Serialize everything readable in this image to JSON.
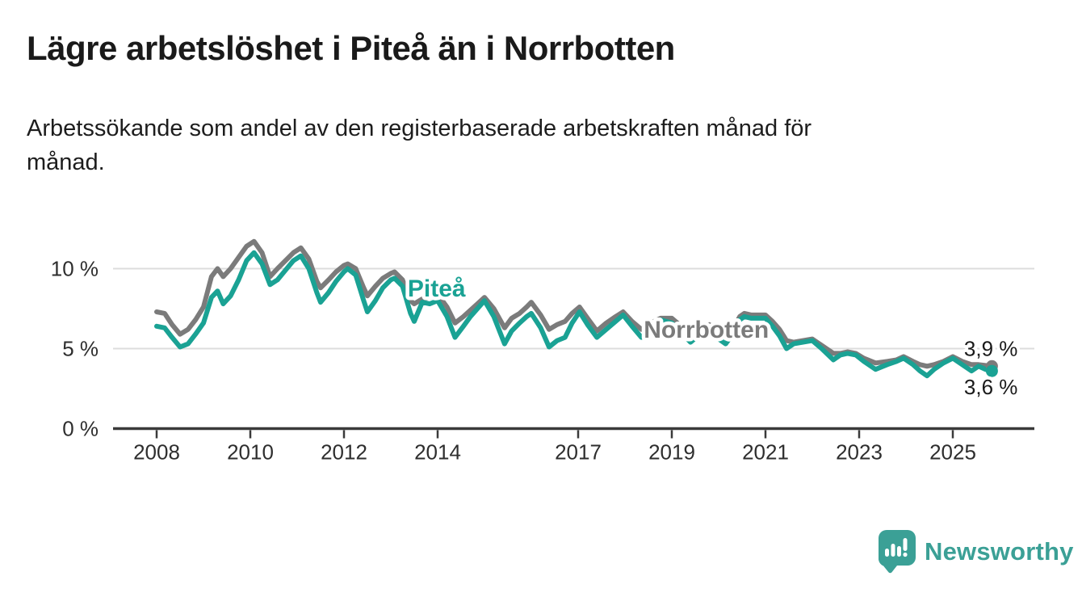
{
  "header": {
    "title": "Lägre arbetslöshet i Piteå än i Norrbotten",
    "subtitle_line1": "Arbetssökande som andel av den registerbaserade arbetskraften månad för",
    "subtitle_line2": "månad."
  },
  "footer": {
    "brand": "Newsworthy",
    "logo_icon": "newsworthy-speech-bubble-bar-chart-icon"
  },
  "colors": {
    "pitea": "#1aa294",
    "norrbotten": "#7b7b7b",
    "grid": "#dcdcdc",
    "axis": "#3a3a3a",
    "tick_text": "#2e2e2e",
    "value_text": "#1a1a1a",
    "brand": "#3ba096"
  },
  "chart_data": {
    "type": "line",
    "title": "Lägre arbetslöshet i Piteå än i Norrbotten",
    "subtitle": "Arbetssökande som andel av den registerbaserade arbetskraften månad för månad.",
    "unit": "%",
    "grid": "horizontal",
    "legend_position": "inline-labels",
    "x_ticks": [
      2008,
      2010,
      2012,
      2014,
      2017,
      2019,
      2021,
      2023,
      2025
    ],
    "x_tick_labels": [
      "2008",
      "2010",
      "2012",
      "2014",
      "2017",
      "2019",
      "2021",
      "2023",
      "2025"
    ],
    "y_ticks": [
      0,
      5,
      10
    ],
    "y_tick_labels": [
      "0 %",
      "5 %",
      "10 %"
    ],
    "ylim": [
      0,
      12.6
    ],
    "xlim": [
      2007.05,
      2026.75
    ],
    "x": [
      2008.0,
      2008.17,
      2008.33,
      2008.5,
      2008.67,
      2008.83,
      2009.0,
      2009.17,
      2009.3,
      2009.42,
      2009.58,
      2009.75,
      2009.92,
      2010.08,
      2010.25,
      2010.42,
      2010.58,
      2010.75,
      2010.92,
      2011.08,
      2011.25,
      2011.42,
      2011.5,
      2011.67,
      2011.83,
      2012.0,
      2012.08,
      2012.25,
      2012.42,
      2012.5,
      2012.67,
      2012.83,
      2013.0,
      2013.08,
      2013.25,
      2013.42,
      2013.5,
      2013.67,
      2013.83,
      2014.0,
      2014.2,
      2014.37,
      2014.55,
      2014.7,
      2014.85,
      2015.0,
      2015.2,
      2015.43,
      2015.58,
      2015.75,
      2015.9,
      2016.0,
      2016.2,
      2016.38,
      2016.55,
      2016.72,
      2016.87,
      2017.03,
      2017.2,
      2017.4,
      2017.6,
      2017.8,
      2017.96,
      2018.15,
      2018.35,
      2018.55,
      2018.76,
      2019.0,
      2019.2,
      2019.4,
      2019.6,
      2019.8,
      2020.0,
      2020.15,
      2020.3,
      2020.45,
      2020.55,
      2020.7,
      2020.85,
      2021.0,
      2021.15,
      2021.3,
      2021.45,
      2021.6,
      2021.8,
      2022.0,
      2022.2,
      2022.45,
      2022.6,
      2022.75,
      2022.93,
      2023.1,
      2023.35,
      2023.6,
      2023.8,
      2023.95,
      2024.15,
      2024.3,
      2024.45,
      2024.6,
      2024.8,
      2025.0,
      2025.2,
      2025.4,
      2025.55,
      2025.7,
      2025.8
    ],
    "series": [
      {
        "name": "Norrbotten",
        "color": "#7b7b7b",
        "label_x": 2018.4,
        "label_y": 5.68,
        "end_label": "3,9 %",
        "end_value": 3.9,
        "values": [
          7.3,
          7.2,
          6.5,
          5.9,
          6.2,
          6.8,
          7.6,
          9.5,
          10.0,
          9.5,
          10.0,
          10.7,
          11.4,
          11.7,
          11.0,
          9.5,
          10.0,
          10.5,
          11.0,
          11.3,
          10.6,
          9.2,
          8.8,
          9.3,
          9.8,
          10.2,
          10.3,
          10.0,
          8.8,
          8.3,
          8.9,
          9.4,
          9.7,
          9.8,
          9.3,
          8.0,
          7.8,
          8.1,
          8.2,
          8.4,
          7.6,
          6.6,
          7.0,
          7.4,
          7.8,
          8.2,
          7.5,
          6.3,
          6.9,
          7.2,
          7.6,
          7.9,
          7.1,
          6.2,
          6.5,
          6.7,
          7.2,
          7.6,
          6.9,
          6.1,
          6.6,
          7.0,
          7.3,
          6.7,
          6.2,
          6.6,
          6.9,
          6.9,
          6.4,
          5.9,
          6.2,
          6.5,
          6.0,
          5.7,
          6.2,
          7.0,
          7.2,
          7.1,
          7.1,
          7.1,
          6.7,
          6.2,
          5.5,
          5.4,
          5.5,
          5.6,
          5.2,
          4.7,
          4.7,
          4.8,
          4.7,
          4.4,
          4.1,
          4.2,
          4.3,
          4.5,
          4.2,
          4.0,
          3.9,
          4.0,
          4.2,
          4.5,
          4.2,
          4.0,
          4.0,
          3.95,
          3.9
        ]
      },
      {
        "name": "Piteå",
        "color": "#1aa294",
        "label_x": 2013.36,
        "label_y": 8.26,
        "end_label": "3,6 %",
        "end_value": 3.6,
        "values": [
          6.4,
          6.3,
          5.7,
          5.1,
          5.3,
          5.9,
          6.6,
          8.2,
          8.6,
          7.8,
          8.3,
          9.3,
          10.5,
          11.0,
          10.3,
          9.0,
          9.3,
          9.9,
          10.5,
          10.8,
          10.0,
          8.5,
          7.9,
          8.5,
          9.2,
          9.8,
          10.0,
          9.6,
          8.0,
          7.3,
          8.0,
          8.8,
          9.3,
          9.4,
          8.9,
          7.2,
          6.7,
          7.9,
          7.8,
          8.0,
          7.0,
          5.7,
          6.4,
          7.0,
          7.5,
          8.0,
          7.0,
          5.3,
          6.1,
          6.6,
          7.0,
          7.2,
          6.3,
          5.1,
          5.5,
          5.7,
          6.6,
          7.3,
          6.5,
          5.7,
          6.2,
          6.7,
          7.1,
          6.4,
          5.7,
          6.3,
          6.8,
          6.6,
          6.0,
          5.4,
          5.9,
          6.2,
          5.6,
          5.3,
          5.9,
          6.8,
          7.0,
          6.9,
          6.9,
          6.9,
          6.4,
          5.8,
          5.0,
          5.3,
          5.4,
          5.5,
          5.0,
          4.3,
          4.6,
          4.7,
          4.6,
          4.2,
          3.7,
          4.0,
          4.2,
          4.4,
          4.0,
          3.6,
          3.3,
          3.7,
          4.1,
          4.4,
          4.0,
          3.6,
          3.9,
          3.7,
          3.6
        ]
      }
    ]
  }
}
